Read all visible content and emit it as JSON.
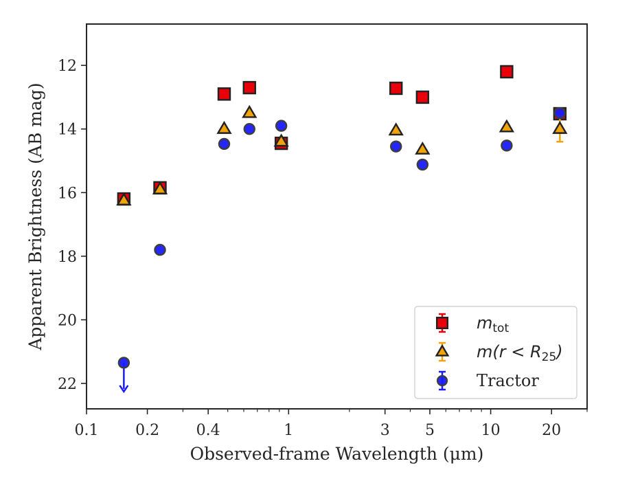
{
  "chart_data": {
    "type": "scatter",
    "xlabel": "Observed-frame Wavelength (μm)",
    "ylabel": "Apparent Brightness (AB mag)",
    "xscale": "log",
    "xlim": [
      0.1,
      30
    ],
    "ylim": [
      22.8,
      10.7
    ],
    "y_inverted": true,
    "xticks": [
      {
        "value": 0.1,
        "label": "0.1"
      },
      {
        "value": 0.2,
        "label": "0.2"
      },
      {
        "value": 0.4,
        "label": "0.4"
      },
      {
        "value": 1,
        "label": "1"
      },
      {
        "value": 3,
        "label": "3"
      },
      {
        "value": 5,
        "label": "5"
      },
      {
        "value": 10,
        "label": "10"
      },
      {
        "value": 20,
        "label": "20"
      }
    ],
    "yticks": [
      {
        "value": 12,
        "label": "12"
      },
      {
        "value": 14,
        "label": "14"
      },
      {
        "value": 16,
        "label": "16"
      },
      {
        "value": 18,
        "label": "18"
      },
      {
        "value": 20,
        "label": "20"
      },
      {
        "value": 22,
        "label": "22"
      }
    ],
    "grid": false,
    "legend_position": "bottom-right",
    "series": [
      {
        "key": "mtot",
        "legend_main": "m",
        "legend_sub": "tot",
        "marker": "square",
        "color": "#e8000b",
        "errcolor": "#e8000b",
        "points": [
          {
            "x": 0.153,
            "y": 16.2,
            "err": 0.1
          },
          {
            "x": 0.231,
            "y": 15.85,
            "err": 0.1
          },
          {
            "x": 0.48,
            "y": 12.9,
            "err": 0
          },
          {
            "x": 0.64,
            "y": 12.7,
            "err": 0
          },
          {
            "x": 0.92,
            "y": 14.45,
            "err": 0
          },
          {
            "x": 3.4,
            "y": 12.72,
            "err": 0
          },
          {
            "x": 4.6,
            "y": 13.0,
            "err": 0
          },
          {
            "x": 12.0,
            "y": 12.2,
            "err": 0
          },
          {
            "x": 22.0,
            "y": 13.52,
            "err": 0
          }
        ]
      },
      {
        "key": "mr25",
        "legend_main": "m(r < R",
        "legend_sub": "25",
        "legend_tail": ")",
        "marker": "triangle",
        "color": "#f0a30a",
        "errcolor": "#f0a30a",
        "points": [
          {
            "x": 0.153,
            "y": 16.25,
            "err": 0
          },
          {
            "x": 0.231,
            "y": 15.9,
            "err": 0
          },
          {
            "x": 0.48,
            "y": 14.0,
            "err": 0
          },
          {
            "x": 0.64,
            "y": 13.5,
            "err": 0
          },
          {
            "x": 0.92,
            "y": 14.4,
            "err": 0
          },
          {
            "x": 3.4,
            "y": 14.05,
            "err": 0
          },
          {
            "x": 4.6,
            "y": 14.65,
            "err": 0
          },
          {
            "x": 12.0,
            "y": 13.95,
            "err": 0
          },
          {
            "x": 22.0,
            "y": 14.0,
            "err": 0.4
          }
        ]
      },
      {
        "key": "tractor",
        "legend_main": "Tractor",
        "marker": "circle",
        "color": "#1a1aff",
        "errcolor": "#1a1aff",
        "points": [
          {
            "x": 0.153,
            "y": 21.35,
            "err": 0,
            "upper_limit": true
          },
          {
            "x": 0.231,
            "y": 17.8,
            "err": 0
          },
          {
            "x": 0.48,
            "y": 14.47,
            "err": 0
          },
          {
            "x": 0.64,
            "y": 14.0,
            "err": 0
          },
          {
            "x": 0.92,
            "y": 13.9,
            "err": 0
          },
          {
            "x": 3.4,
            "y": 14.55,
            "err": 0
          },
          {
            "x": 4.6,
            "y": 15.12,
            "err": 0
          },
          {
            "x": 12.0,
            "y": 14.52,
            "err": 0
          },
          {
            "x": 22.0,
            "y": 13.5,
            "err": 0
          }
        ]
      }
    ]
  }
}
